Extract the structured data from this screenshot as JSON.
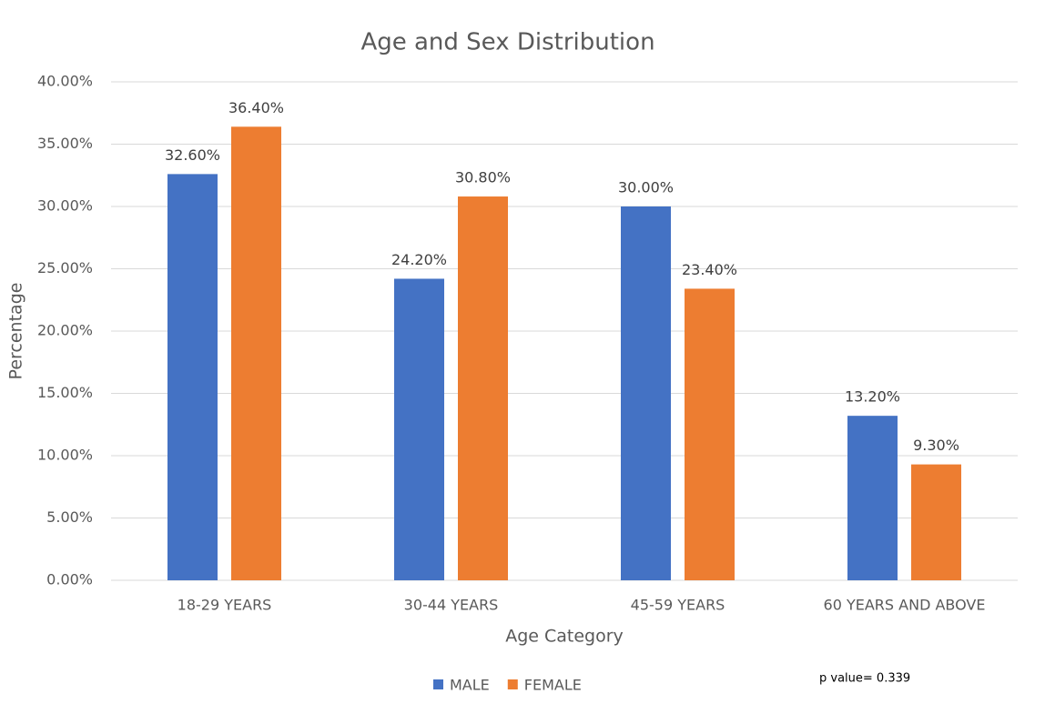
{
  "chart_data": {
    "type": "bar",
    "title": "Age and Sex Distribution",
    "x_label": "Age Category",
    "y_label": "Percentage",
    "categories": [
      "18-29 YEARS",
      "30-44 YEARS",
      "45-59 YEARS",
      "60 YEARS AND ABOVE"
    ],
    "series": [
      {
        "name": "MALE",
        "color": "#4472c4",
        "values": [
          32.6,
          24.2,
          30.0,
          13.2
        ],
        "value_labels": [
          "32.60%",
          "24.20%",
          "30.00%",
          "13.20%"
        ]
      },
      {
        "name": "FEMALE",
        "color": "#ed7d31",
        "values": [
          36.4,
          30.8,
          23.4,
          9.3
        ],
        "value_labels": [
          "36.40%",
          "30.80%",
          "23.40%",
          "9.30%"
        ]
      }
    ],
    "ylim": [
      0,
      40
    ],
    "yticks": [
      {
        "value": 0,
        "label": "0.00%"
      },
      {
        "value": 5,
        "label": "5.00%"
      },
      {
        "value": 10,
        "label": "10.00%"
      },
      {
        "value": 15,
        "label": "15.00%"
      },
      {
        "value": 20,
        "label": "20.00%"
      },
      {
        "value": 25,
        "label": "25.00%"
      },
      {
        "value": 30,
        "label": "30.00%"
      },
      {
        "value": 35,
        "label": "35.00%"
      },
      {
        "value": 40,
        "label": "40.00%"
      }
    ],
    "grid": true,
    "legend": "bottom",
    "annotation": "p value= 0.339"
  }
}
